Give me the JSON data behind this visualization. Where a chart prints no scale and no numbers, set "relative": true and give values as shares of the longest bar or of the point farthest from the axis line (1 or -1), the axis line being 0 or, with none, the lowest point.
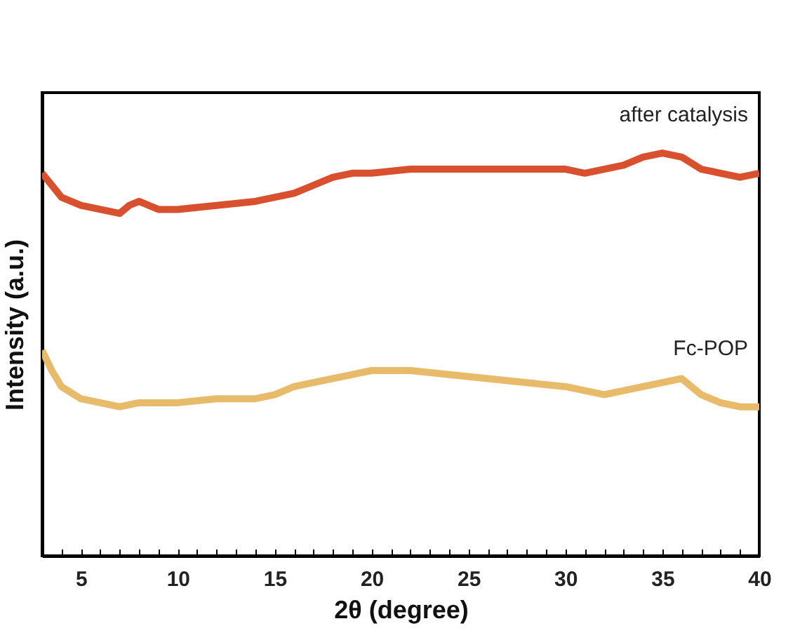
{
  "chart_data": {
    "type": "line",
    "relative": true,
    "xlabel": "2θ (degree)",
    "ylabel": "Intensity (a.u.)",
    "xlim": [
      3,
      40
    ],
    "xticks": [
      {
        "value": 3,
        "label": null
      },
      {
        "value": 4,
        "label": null
      },
      5,
      {
        "value": 6,
        "label": null
      },
      {
        "value": 7,
        "label": null
      },
      {
        "value": 8,
        "label": null
      },
      {
        "value": 9,
        "label": null
      },
      10,
      {
        "value": 11,
        "label": null
      },
      {
        "value": 12,
        "label": null
      },
      {
        "value": 13,
        "label": null
      },
      {
        "value": 14,
        "label": null
      },
      15,
      {
        "value": 16,
        "label": null
      },
      {
        "value": 17,
        "label": null
      },
      {
        "value": 18,
        "label": null
      },
      {
        "value": 19,
        "label": null
      },
      20,
      {
        "value": 21,
        "label": null
      },
      {
        "value": 22,
        "label": null
      },
      {
        "value": 23,
        "label": null
      },
      {
        "value": 24,
        "label": null
      },
      25,
      {
        "value": 26,
        "label": null
      },
      {
        "value": 27,
        "label": null
      },
      {
        "value": 28,
        "label": null
      },
      {
        "value": 29,
        "label": null
      },
      30,
      {
        "value": 31,
        "label": null
      },
      {
        "value": 32,
        "label": null
      },
      {
        "value": 33,
        "label": null
      },
      {
        "value": 34,
        "label": null
      },
      35,
      {
        "value": 36,
        "label": null
      },
      {
        "value": 37,
        "label": null
      },
      {
        "value": 38,
        "label": null
      },
      {
        "value": 39,
        "label": null
      },
      40
    ],
    "legend": false,
    "grid": false,
    "marker": "none",
    "line_style": "solid",
    "series": [
      {
        "name": "after catalysis",
        "color": "#d9502e",
        "x": [
          3,
          4,
          5,
          6,
          7,
          7.5,
          8,
          9,
          10,
          12,
          14,
          15,
          16,
          17,
          18,
          19,
          20,
          22,
          24,
          26,
          28,
          30,
          31,
          32,
          33,
          34,
          35,
          36,
          37,
          38,
          39,
          40
        ],
        "values": [
          0.95,
          0.89,
          0.87,
          0.86,
          0.85,
          0.87,
          0.88,
          0.86,
          0.86,
          0.87,
          0.88,
          0.89,
          0.9,
          0.92,
          0.94,
          0.95,
          0.95,
          0.96,
          0.96,
          0.96,
          0.96,
          0.96,
          0.95,
          0.96,
          0.97,
          0.99,
          1,
          0.99,
          0.96,
          0.95,
          0.94,
          0.95
        ]
      },
      {
        "name": "Fc-POP",
        "color": "#e8bb6a",
        "x": [
          3,
          3.5,
          4,
          5,
          6,
          7,
          8,
          10,
          12,
          14,
          15,
          16,
          18,
          20,
          22,
          24,
          26,
          28,
          30,
          32,
          34,
          35,
          36,
          37,
          38,
          39,
          40
        ],
        "values": [
          0.51,
          0.46,
          0.42,
          0.39,
          0.38,
          0.37,
          0.38,
          0.38,
          0.39,
          0.39,
          0.4,
          0.42,
          0.44,
          0.46,
          0.46,
          0.45,
          0.44,
          0.43,
          0.42,
          0.4,
          0.42,
          0.43,
          0.44,
          0.4,
          0.38,
          0.37,
          0.37
        ]
      }
    ]
  }
}
